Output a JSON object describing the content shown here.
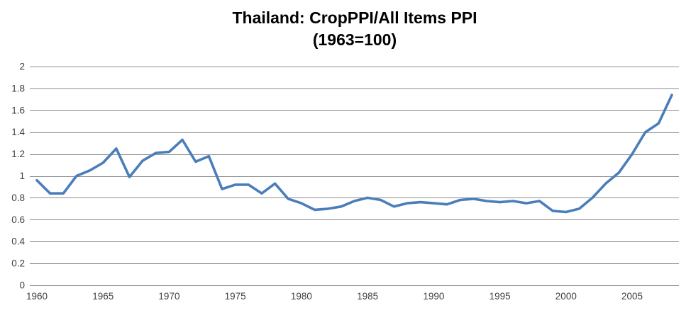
{
  "chart_data": {
    "type": "line",
    "title_line1": "Thailand: CropPPI/All Items PPI",
    "title_line2": "(1963=100)",
    "xlabel": "",
    "ylabel": "",
    "x": [
      1960,
      1961,
      1962,
      1963,
      1964,
      1965,
      1966,
      1967,
      1968,
      1969,
      1970,
      1971,
      1972,
      1973,
      1974,
      1975,
      1976,
      1977,
      1978,
      1979,
      1980,
      1981,
      1982,
      1983,
      1984,
      1985,
      1986,
      1987,
      1988,
      1989,
      1990,
      1991,
      1992,
      1993,
      1994,
      1995,
      1996,
      1997,
      1998,
      1999,
      2000,
      2001,
      2002,
      2003,
      2004,
      2005,
      2006,
      2007,
      2008
    ],
    "values": [
      0.96,
      0.84,
      0.84,
      1.0,
      1.05,
      1.12,
      1.25,
      0.99,
      1.14,
      1.21,
      1.22,
      1.33,
      1.13,
      1.18,
      0.88,
      0.92,
      0.92,
      0.84,
      0.93,
      0.79,
      0.75,
      0.69,
      0.7,
      0.72,
      0.77,
      0.8,
      0.78,
      0.72,
      0.75,
      0.76,
      0.75,
      0.74,
      0.78,
      0.79,
      0.77,
      0.76,
      0.77,
      0.75,
      0.77,
      0.68,
      0.67,
      0.7,
      0.8,
      0.93,
      1.03,
      1.2,
      1.4,
      1.48,
      1.74
    ],
    "xticks": [
      1960,
      1965,
      1970,
      1975,
      1980,
      1985,
      1990,
      1995,
      2000,
      2005
    ],
    "yticks": [
      0,
      0.2,
      0.4,
      0.6,
      0.8,
      1,
      1.2,
      1.4,
      1.6,
      1.8,
      2
    ],
    "ytick_labels": [
      "0",
      "0.2",
      "0.4",
      "0.6",
      "0.8",
      "1",
      "1.2",
      "1.4",
      "1.6",
      "1.8",
      "2"
    ],
    "ylim": [
      0,
      2
    ],
    "grid": "horizontal",
    "legend": "none",
    "colors": {
      "line": "#4A7EBB",
      "gridline": "#8C8C8C",
      "tick_text": "#3F3F3F",
      "title_text": "#000000",
      "background": "#FFFFFF"
    }
  }
}
